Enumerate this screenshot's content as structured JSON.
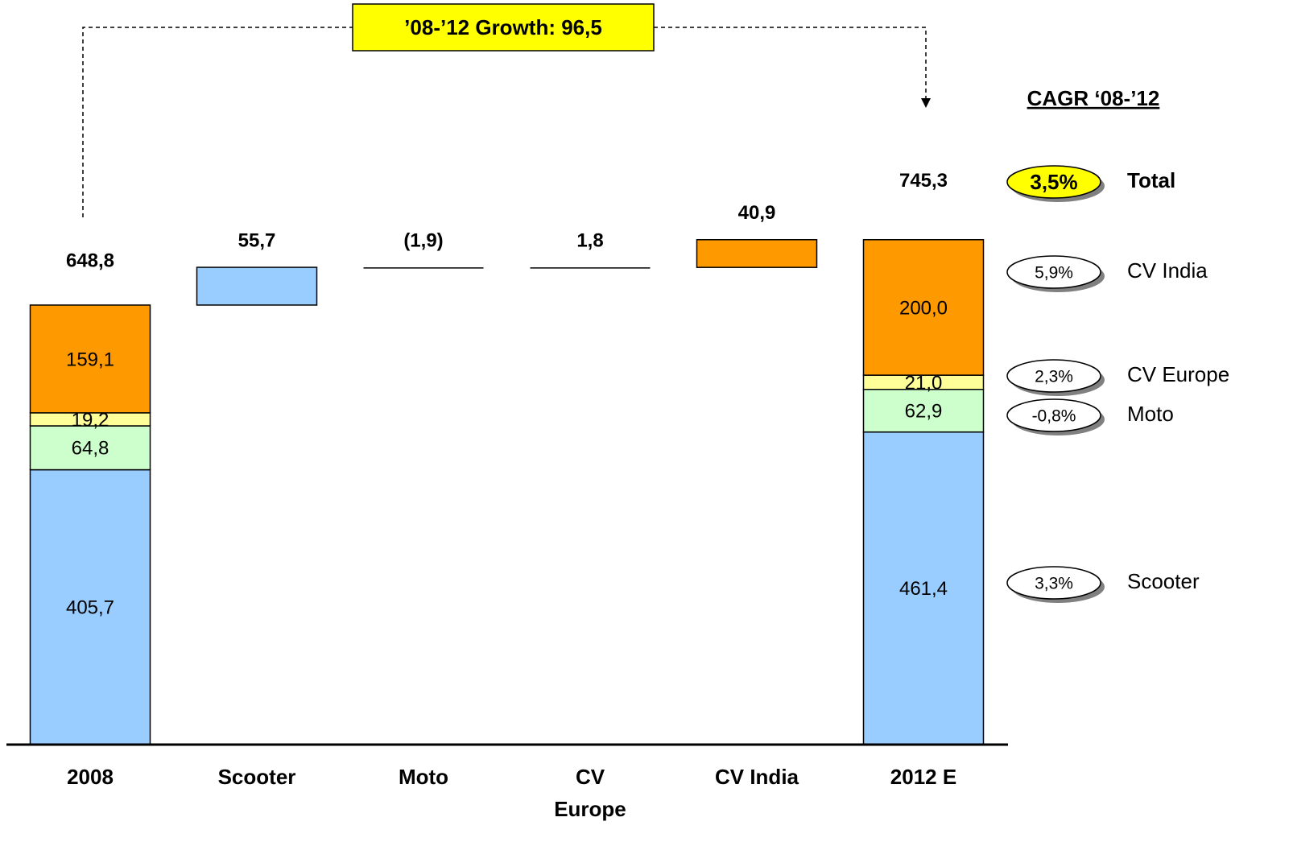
{
  "chart_data": {
    "type": "waterfall",
    "categories": [
      "2008",
      "Scooter",
      "Moto",
      "CV Europe",
      "CV India",
      "2012 E"
    ],
    "series": [
      {
        "name": "Scooter",
        "color": "#99ccff",
        "values": [
          405.7,
          null,
          null,
          null,
          null,
          461.4
        ],
        "value_labels": [
          "405,7",
          null,
          null,
          null,
          null,
          "461,4"
        ]
      },
      {
        "name": "Moto",
        "color": "#ccffcc",
        "values": [
          64.8,
          null,
          null,
          null,
          null,
          62.9
        ],
        "value_labels": [
          "64,8",
          null,
          null,
          null,
          null,
          "62,9"
        ]
      },
      {
        "name": "CV Europe",
        "color": "#ffff99",
        "values": [
          19.2,
          null,
          null,
          null,
          null,
          21.0
        ],
        "value_labels": [
          "19,2",
          null,
          null,
          null,
          null,
          "21,0"
        ]
      },
      {
        "name": "CV India",
        "color": "#ff9900",
        "values": [
          159.1,
          null,
          null,
          null,
          null,
          200.0
        ],
        "value_labels": [
          "159,1",
          null,
          null,
          null,
          null,
          "200,0"
        ]
      }
    ],
    "totals": [
      648.8,
      null,
      null,
      null,
      null,
      745.3
    ],
    "total_labels": [
      "648,8",
      null,
      null,
      null,
      null,
      "745,3"
    ],
    "deltas": [
      null,
      55.7,
      -1.9,
      1.8,
      40.9,
      null
    ],
    "delta_labels": [
      null,
      "55,7",
      "(1,9)",
      "1,8",
      "40,9",
      null
    ],
    "ylim": [
      0,
      1100
    ],
    "growth_annotation": "’08-’12 Growth: 96,5",
    "cagr": {
      "title": "CAGR ‘08-’12",
      "items": [
        {
          "name": "Total",
          "value": 3.5,
          "label": "3,5%"
        },
        {
          "name": "CV India",
          "value": 5.9,
          "label": "5,9%"
        },
        {
          "name": "CV Europe",
          "value": 2.3,
          "label": "2,3%"
        },
        {
          "name": "Moto",
          "value": -0.8,
          "label": "-0,8%"
        },
        {
          "name": "Scooter",
          "value": 3.3,
          "label": "3,3%"
        }
      ]
    }
  }
}
